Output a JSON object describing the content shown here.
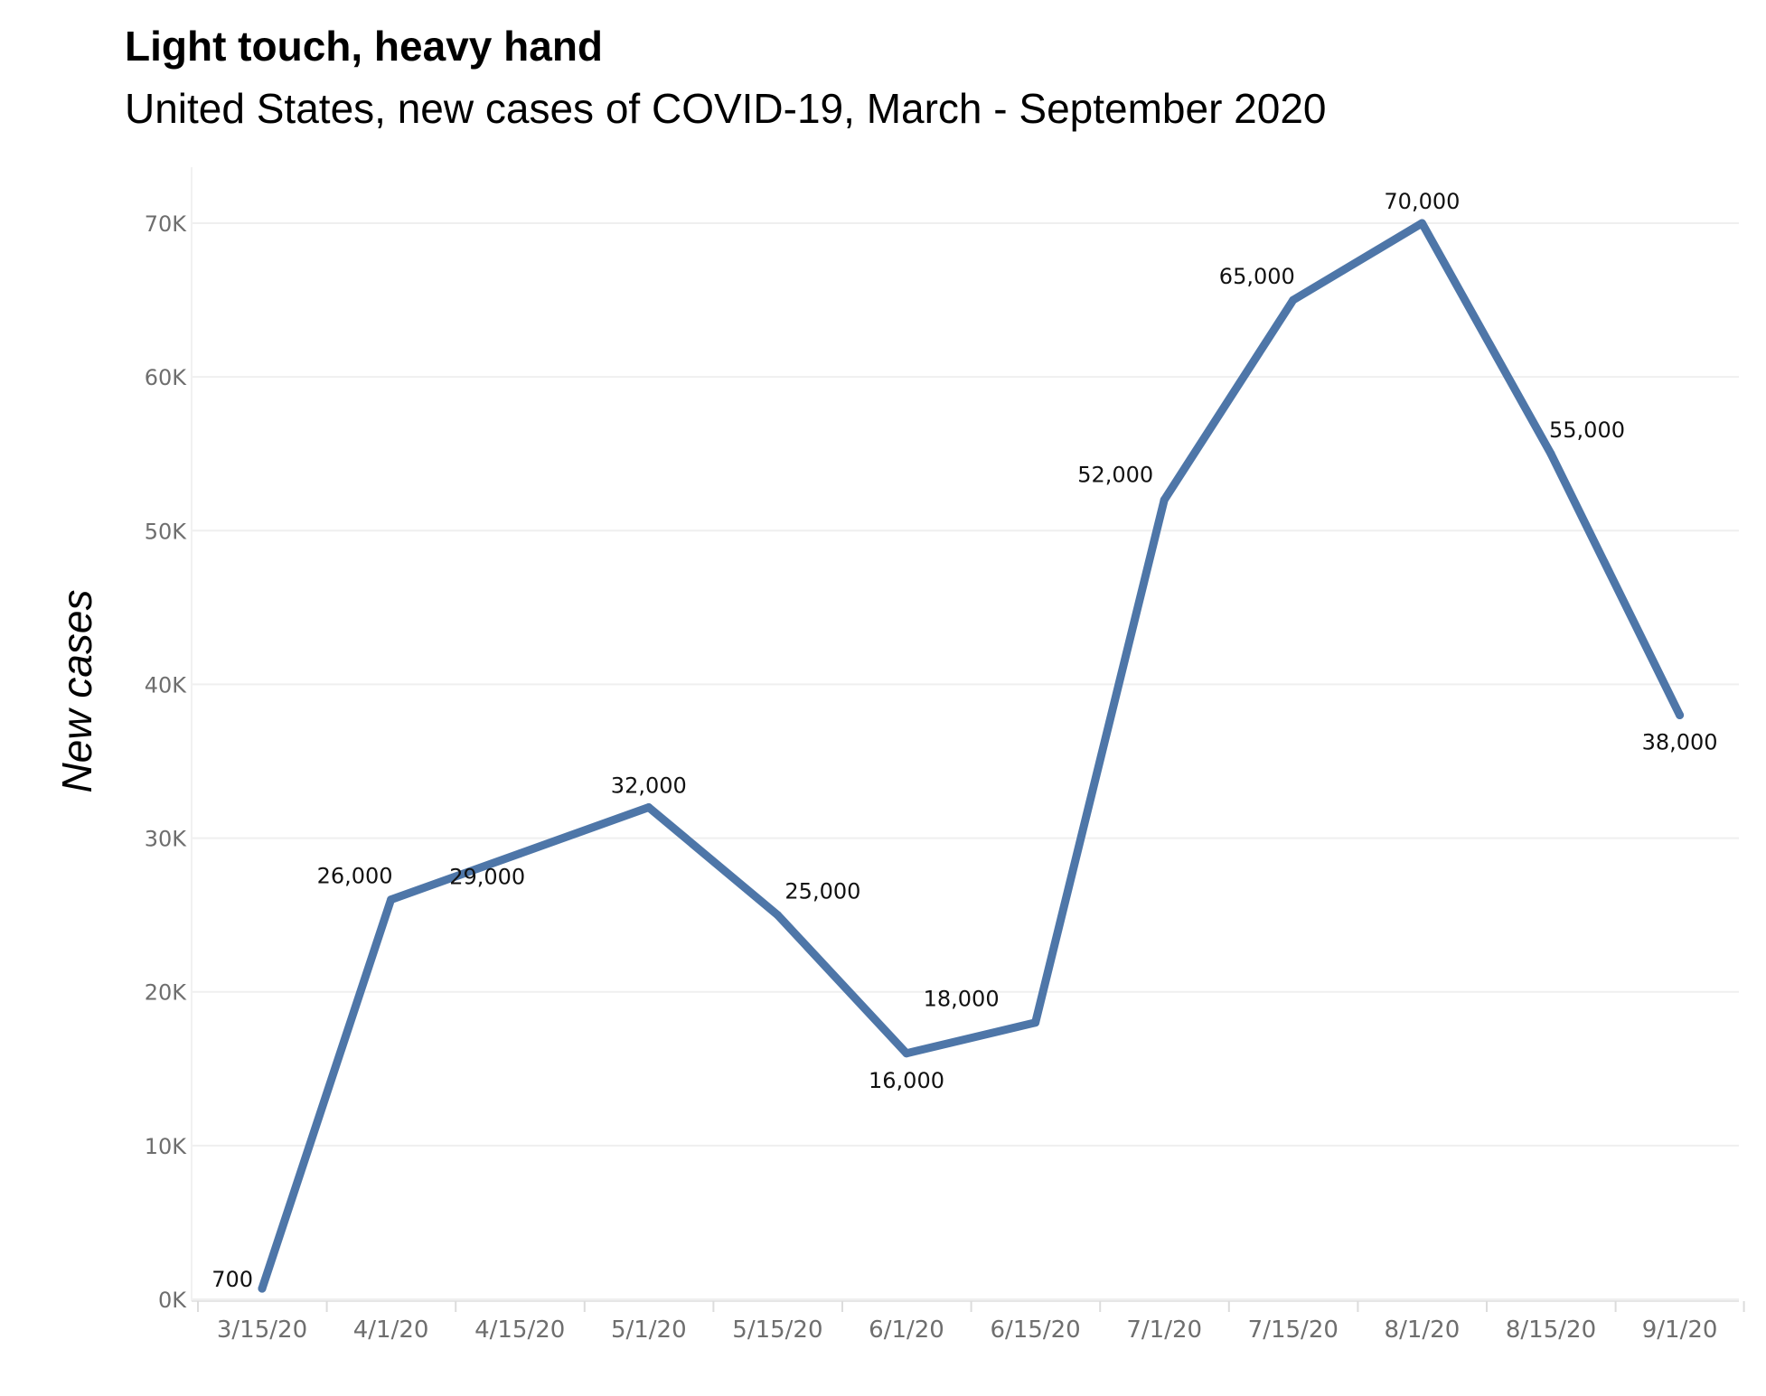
{
  "chart_data": {
    "type": "line",
    "title": "Light touch, heavy hand",
    "subtitle": "United States, new cases of COVID-19, March - September 2020",
    "xlabel": "",
    "ylabel": "New cases",
    "categories": [
      "3/15/20",
      "4/1/20",
      "4/15/20",
      "5/1/20",
      "5/15/20",
      "6/1/20",
      "6/15/20",
      "7/1/20",
      "7/15/20",
      "8/1/20",
      "8/15/20",
      "9/1/20"
    ],
    "series": [
      {
        "values": [
          700,
          26000,
          29000,
          32000,
          25000,
          16000,
          18000,
          52000,
          65000,
          70000,
          55000,
          38000
        ],
        "data_labels": [
          "700",
          "26,000",
          "29,000",
          "32,000",
          "25,000",
          "16,000",
          "18,000",
          "52,000",
          "65,000",
          "70,000",
          "55,000",
          "38,000"
        ],
        "color": "#4e76a8"
      }
    ],
    "ylim": [
      0,
      70000
    ],
    "yticks": [
      0,
      10000,
      20000,
      30000,
      40000,
      50000,
      60000,
      70000
    ],
    "ytick_labels": [
      "0K",
      "10K",
      "20K",
      "30K",
      "40K",
      "50K",
      "60K",
      "70K"
    ],
    "grid": true,
    "legend": "none"
  }
}
